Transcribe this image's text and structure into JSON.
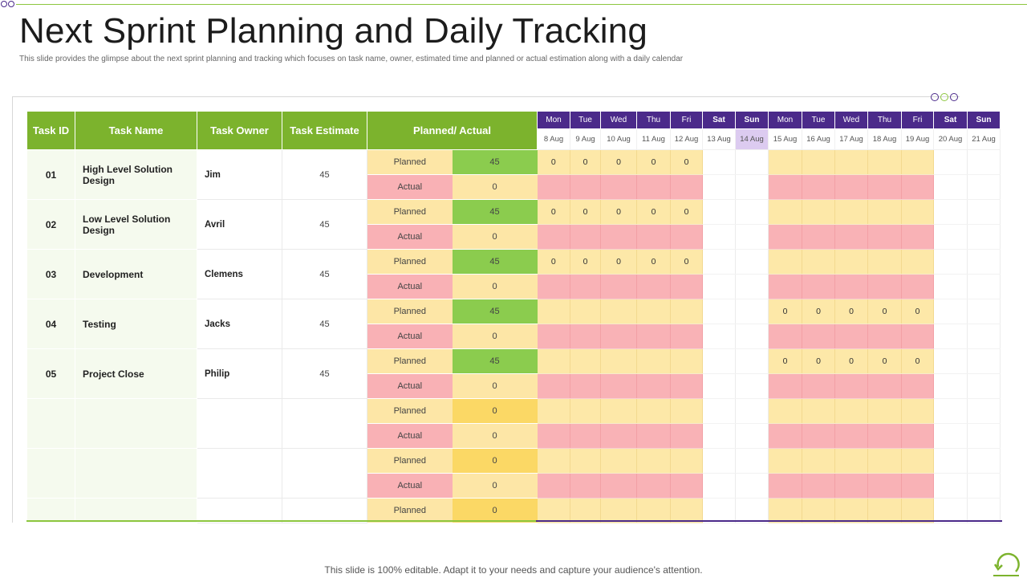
{
  "header": {
    "title": "Next Sprint Planning and Daily Tracking",
    "subtitle": "This slide provides the glimpse about the next sprint planning and tracking which focuses on task name, owner, estimated time and planned or actual estimation along with a daily calendar"
  },
  "table": {
    "headers": {
      "task_id": "Task ID",
      "task_name": "Task Name",
      "task_owner": "Task Owner",
      "task_estimate": "Task Estimate",
      "planned_actual": "Planned/ Actual"
    },
    "days": [
      "Mon",
      "Tue",
      "Wed",
      "Thu",
      "Fri",
      "Sat",
      "Sun",
      "Mon",
      "Tue",
      "Wed",
      "Thu",
      "Fri",
      "Sat",
      "Sun"
    ],
    "dates": [
      "8 Aug",
      "9 Aug",
      "10 Aug",
      "11 Aug",
      "12 Aug",
      "13 Aug",
      "14 Aug",
      "15 Aug",
      "16 Aug",
      "17 Aug",
      "18 Aug",
      "19 Aug",
      "20 Aug",
      "21 Aug"
    ],
    "highlighted_date": "14 Aug",
    "planned_label": "Planned",
    "actual_label": "Actual",
    "tasks": [
      {
        "id": "01",
        "name": "High Level Solution Design",
        "owner": "Jim",
        "estimate": "45",
        "planned": "45",
        "actual": "0",
        "week1": [
          "0",
          "0",
          "0",
          "0",
          "0"
        ],
        "week2": [
          "",
          "",
          "",
          "",
          ""
        ]
      },
      {
        "id": "02",
        "name": "Low Level Solution Design",
        "owner": "Avril",
        "estimate": "45",
        "planned": "45",
        "actual": "0",
        "week1": [
          "0",
          "0",
          "0",
          "0",
          "0"
        ],
        "week2": [
          "",
          "",
          "",
          "",
          ""
        ]
      },
      {
        "id": "03",
        "name": "Development",
        "owner": "Clemens",
        "estimate": "45",
        "planned": "45",
        "actual": "0",
        "week1": [
          "0",
          "0",
          "0",
          "0",
          "0"
        ],
        "week2": [
          "",
          "",
          "",
          "",
          ""
        ]
      },
      {
        "id": "04",
        "name": "Testing",
        "owner": "Jacks",
        "estimate": "45",
        "planned": "45",
        "actual": "0",
        "week1": [
          "",
          "",
          "",
          "",
          ""
        ],
        "week2": [
          "0",
          "0",
          "0",
          "0",
          "0"
        ]
      },
      {
        "id": "05",
        "name": "Project Close",
        "owner": "Philip",
        "estimate": "45",
        "planned": "45",
        "actual": "0",
        "week1": [
          "",
          "",
          "",
          "",
          ""
        ],
        "week2": [
          "0",
          "0",
          "0",
          "0",
          "0"
        ]
      },
      {
        "id": "",
        "name": "",
        "owner": "",
        "estimate": "",
        "planned": "0",
        "actual": "0",
        "week1": [
          "",
          "",
          "",
          "",
          ""
        ],
        "week2": [
          "",
          "",
          "",
          "",
          ""
        ]
      },
      {
        "id": "",
        "name": "",
        "owner": "",
        "estimate": "",
        "planned": "0",
        "actual": "0",
        "week1": [
          "",
          "",
          "",
          "",
          ""
        ],
        "week2": [
          "",
          "",
          "",
          "",
          ""
        ]
      },
      {
        "id": "",
        "name": "",
        "owner": "",
        "estimate": "",
        "planned": "0",
        "actual": null,
        "week1": [
          "",
          "",
          "",
          "",
          ""
        ],
        "week2": [
          "",
          "",
          "",
          "",
          ""
        ]
      }
    ]
  },
  "colors": {
    "header_green": "#7cb32d",
    "day_purple": "#4b2a8a",
    "planned_cell": "#fde8a8",
    "actual_cell": "#f9b2b6",
    "planned_value_green": "#8bcc4e",
    "planned_value_yellow": "#fbd865",
    "highlight_date": "#dccbf0"
  },
  "icons": {
    "corner": "linked-circles-icon",
    "decor": "three-dots-icon",
    "logo": "refresh-cycle-icon"
  },
  "footer": {
    "text": "This slide is 100% editable. Adapt it to your needs and capture your audience's attention."
  }
}
